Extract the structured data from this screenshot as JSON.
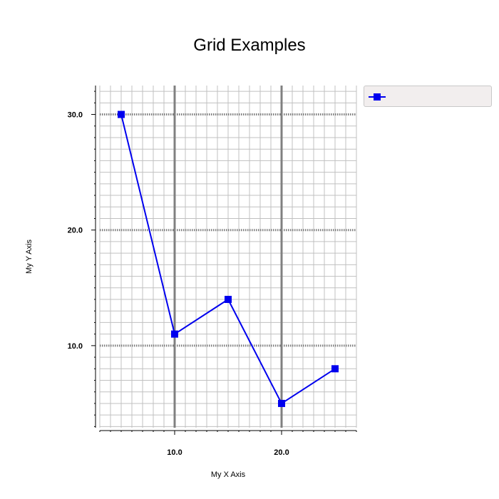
{
  "chart_data": {
    "type": "line",
    "title": "Grid Examples",
    "xlabel": "My X Axis",
    "ylabel": "My Y Axis",
    "xlim": [
      3,
      27
    ],
    "ylim": [
      2.9,
      32.5
    ],
    "x_ticks": [
      10,
      20
    ],
    "x_tick_labels": [
      "10.0",
      "20.0"
    ],
    "y_ticks": [
      10,
      20,
      30
    ],
    "y_tick_labels": [
      "10.0",
      "20.0",
      "30.0"
    ],
    "x_minor_step": 1,
    "y_minor_step": 1,
    "grid": true,
    "legend_position": "right",
    "series": [
      {
        "name": "",
        "color": "#0000ee",
        "marker": "square",
        "x": [
          5,
          10,
          15,
          20,
          25
        ],
        "y": [
          30,
          11,
          14,
          5,
          8
        ]
      }
    ]
  }
}
